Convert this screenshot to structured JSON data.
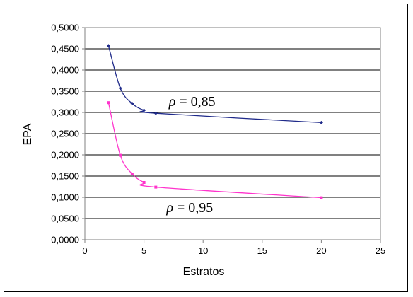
{
  "chart_data": {
    "type": "line",
    "title": "",
    "xlabel": "Estratos",
    "ylabel": "EPA",
    "xlim": [
      0,
      25
    ],
    "ylim": [
      0,
      0.5
    ],
    "x_ticks": [
      "0",
      "5",
      "10",
      "15",
      "20",
      "25"
    ],
    "y_ticks": [
      "0,0000",
      "0,0500",
      "0,1000",
      "0,1500",
      "0,2000",
      "0,2500",
      "0,3000",
      "0,3500",
      "0,4000",
      "0,4500",
      "0,5000"
    ],
    "grid": "horizontal",
    "legend": "none",
    "series": [
      {
        "color": "#1f2a8a",
        "marker": "diamond",
        "points": [
          [
            2,
            0.457
          ],
          [
            3,
            0.357
          ],
          [
            4,
            0.321
          ],
          [
            5,
            0.305
          ],
          [
            6,
            0.298
          ],
          [
            20,
            0.276
          ]
        ]
      },
      {
        "color": "#ff33cc",
        "marker": "square",
        "points": [
          [
            2,
            0.323
          ],
          [
            3,
            0.199
          ],
          [
            4,
            0.155
          ],
          [
            5,
            0.135
          ],
          [
            6,
            0.124
          ],
          [
            20,
            0.099
          ]
        ]
      }
    ],
    "annotations": [
      {
        "symbol": "ρ",
        "text": " = 0,85",
        "x": 7.1,
        "y": 0.315
      },
      {
        "symbol": "ρ",
        "text": " = 0,95",
        "x": 6.9,
        "y": 0.065
      }
    ]
  }
}
